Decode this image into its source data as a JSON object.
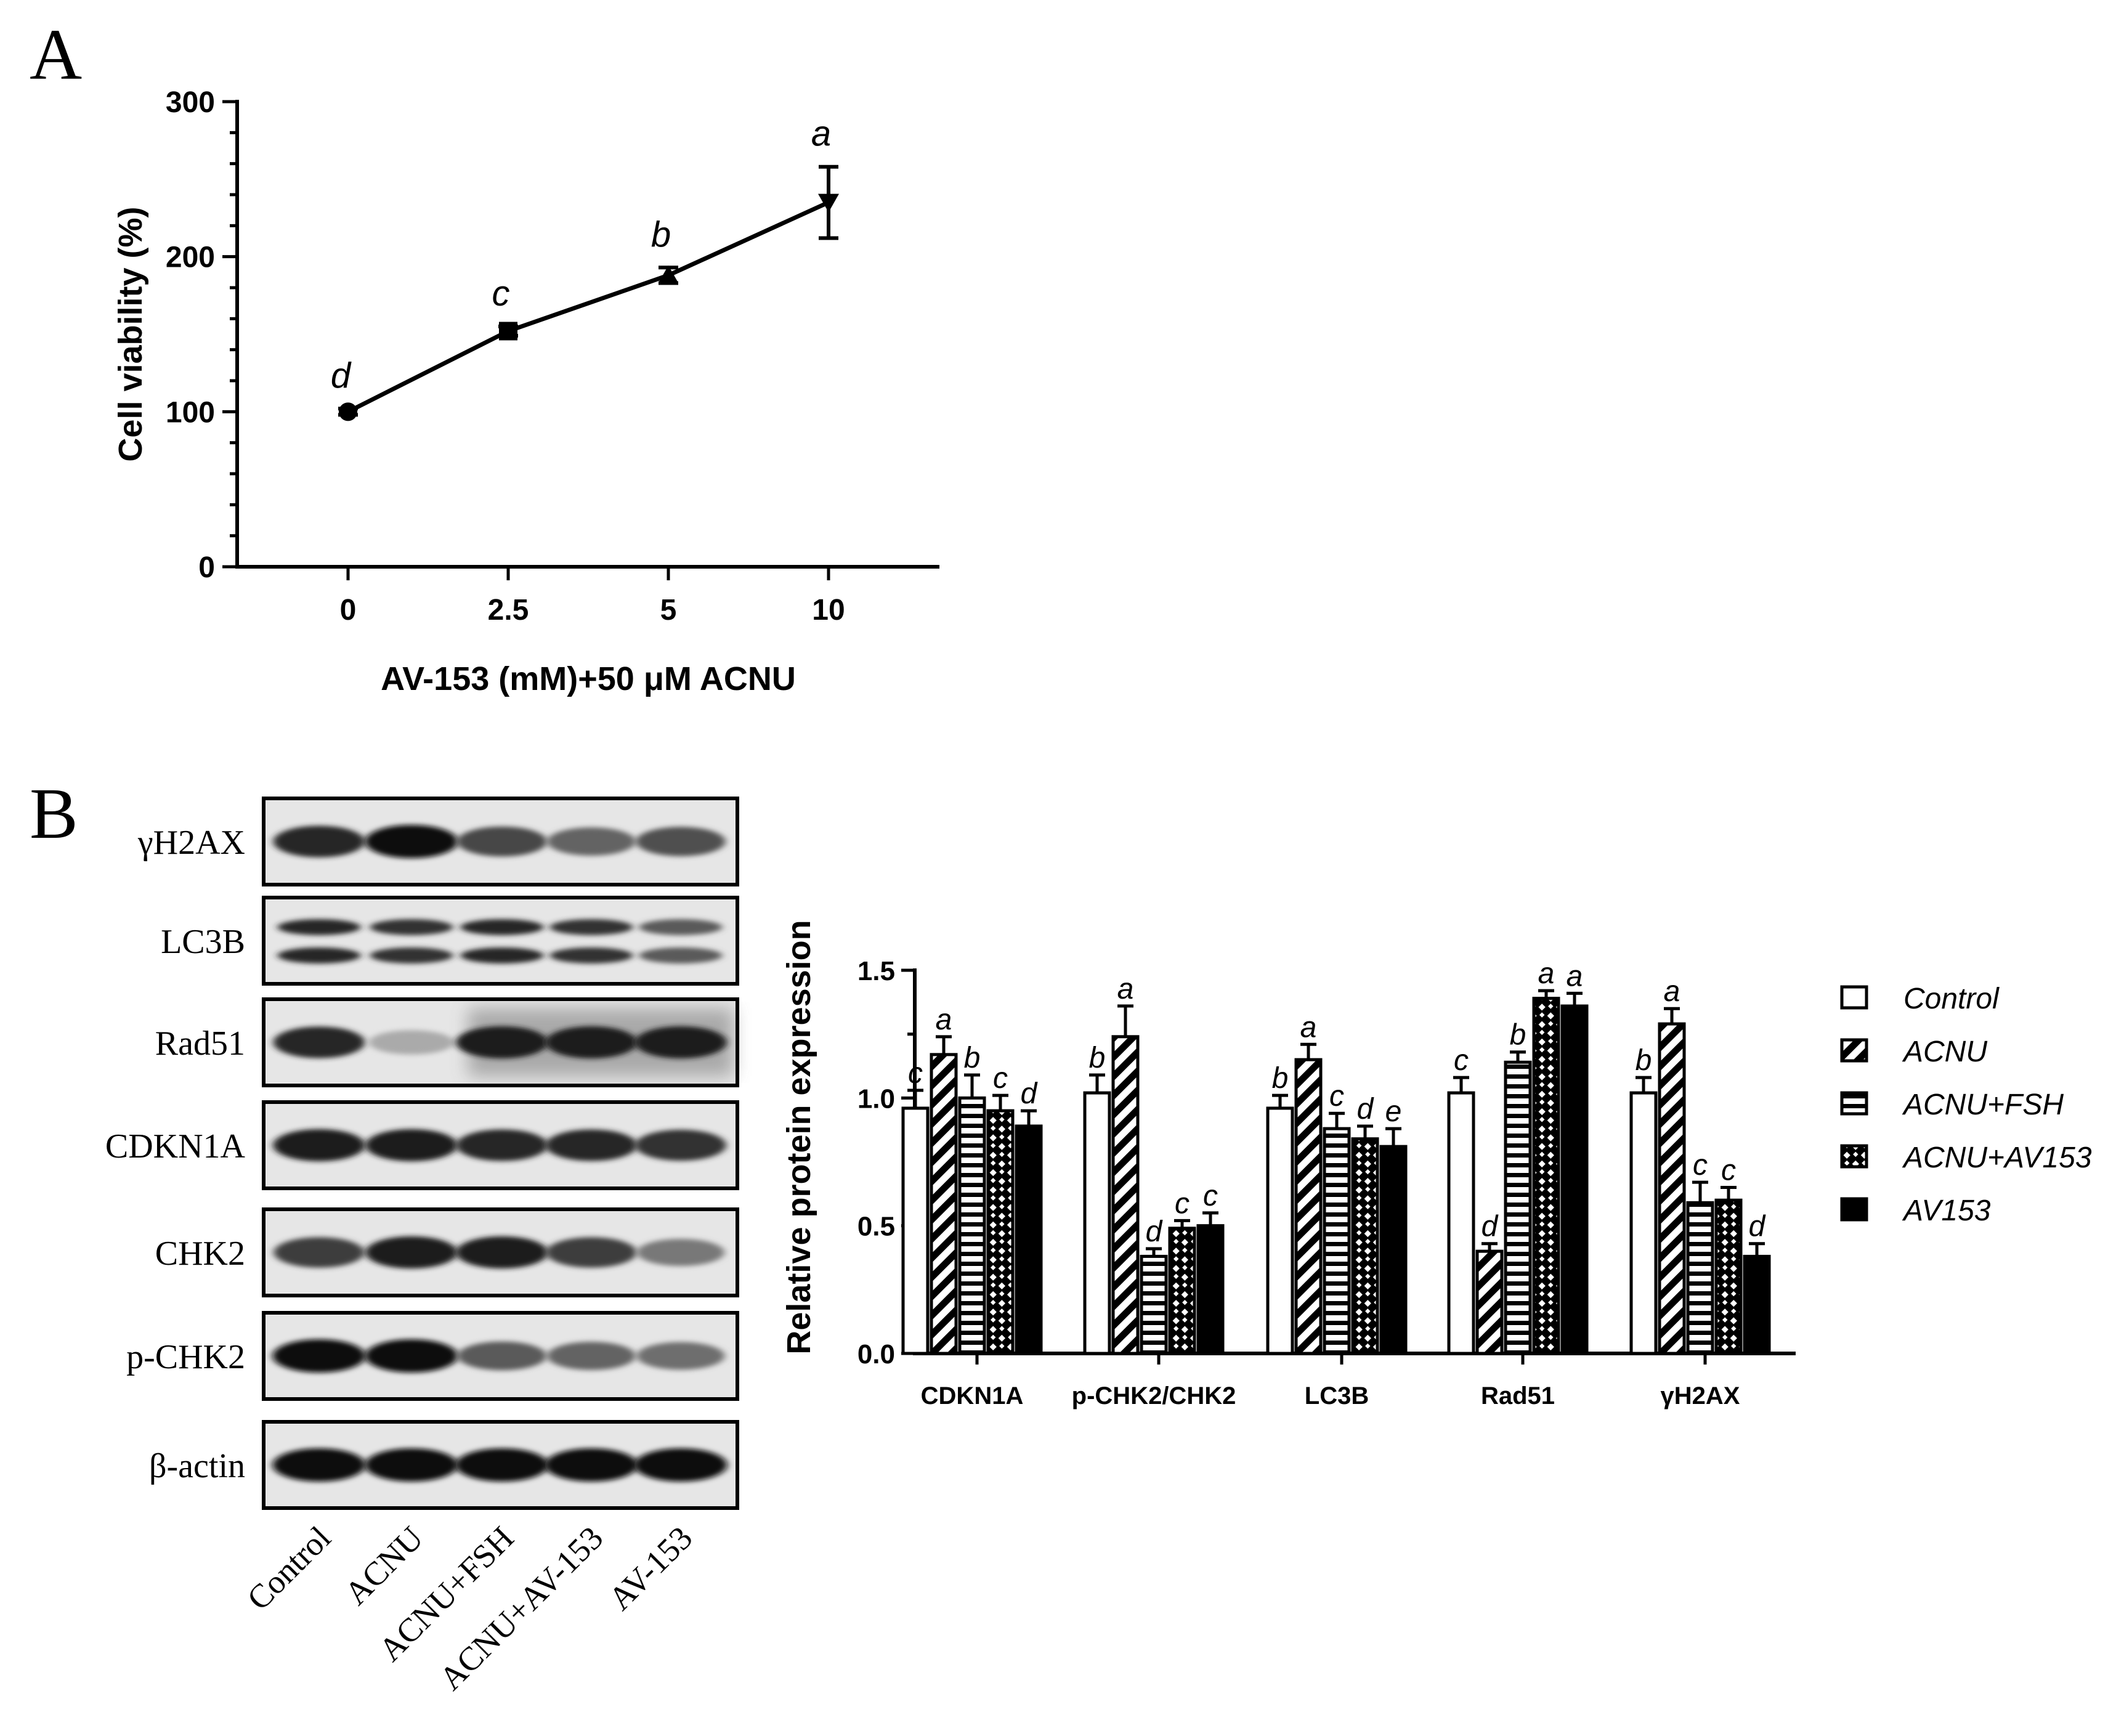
{
  "panel_labels": {
    "a": "A",
    "b": "B"
  },
  "chart_data": [
    {
      "type": "line",
      "panel": "A",
      "xlabel": "AV-153 (mM)+50 μM ACNU",
      "ylabel": "Cell viability (%)",
      "categories": [
        "0",
        "2.5",
        "5",
        "10"
      ],
      "values": [
        100,
        152,
        188,
        235
      ],
      "errors": [
        2,
        3,
        5,
        23
      ],
      "sig_letters": [
        "d",
        "c",
        "b",
        "a"
      ],
      "markers": [
        "circle",
        "square",
        "triangle-up",
        "triangle-down"
      ],
      "ylim": [
        0,
        300
      ],
      "yticks": [
        0,
        100,
        200,
        300
      ],
      "grid": false
    },
    {
      "type": "bar",
      "panel": "B",
      "ylabel": "Relative protein expression",
      "categories": [
        "CDKN1A",
        "p-CHK2/CHK2",
        "LC3B",
        "Rad51",
        "γH2AX"
      ],
      "ylim": [
        0,
        1.5
      ],
      "yticks": [
        "0.0",
        "0.5",
        "1.0",
        "1.5"
      ],
      "legend_position": "right",
      "series": [
        {
          "name": "Control",
          "pattern": "open",
          "values": [
            0.96,
            1.02,
            0.96,
            1.02,
            1.02
          ],
          "errors": [
            0.07,
            0.07,
            0.05,
            0.06,
            0.06
          ],
          "sig_letters": [
            "c",
            "b",
            "b",
            "c",
            "b"
          ]
        },
        {
          "name": "ACNU",
          "pattern": "diagonal",
          "values": [
            1.17,
            1.24,
            1.15,
            0.4,
            1.29
          ],
          "errors": [
            0.07,
            0.12,
            0.06,
            0.03,
            0.06
          ],
          "sig_letters": [
            "a",
            "a",
            "a",
            "d",
            "a"
          ]
        },
        {
          "name": "ACNU+FSH",
          "pattern": "horizontal",
          "values": [
            1.0,
            0.38,
            0.88,
            1.14,
            0.59
          ],
          "errors": [
            0.09,
            0.03,
            0.06,
            0.04,
            0.08
          ],
          "sig_letters": [
            "b",
            "d",
            "c",
            "b",
            "c"
          ]
        },
        {
          "name": "ACNU+AV153",
          "pattern": "checker",
          "values": [
            0.95,
            0.49,
            0.84,
            1.39,
            0.6
          ],
          "errors": [
            0.06,
            0.03,
            0.05,
            0.03,
            0.05
          ],
          "sig_letters": [
            "c",
            "c",
            "d",
            "a",
            "c"
          ]
        },
        {
          "name": "AV153",
          "pattern": "solid",
          "values": [
            0.89,
            0.5,
            0.81,
            1.36,
            0.38
          ],
          "errors": [
            0.06,
            0.05,
            0.07,
            0.05,
            0.05
          ],
          "sig_letters": [
            "d",
            "c",
            "e",
            "a",
            "d"
          ]
        }
      ]
    }
  ],
  "western_blot": {
    "proteins": [
      "γH2AX",
      "LC3B",
      "Rad51",
      "CDKN1A",
      "CHK2",
      "p-CHK2",
      "β-actin"
    ],
    "lanes": [
      "Control",
      "ACNU",
      "ACNU+FSH",
      "ACNU+AV-153",
      "AV-153"
    ],
    "band_intensity": [
      [
        0.85,
        1.0,
        0.7,
        0.55,
        0.65
      ],
      [
        0.85,
        0.8,
        0.85,
        0.8,
        0.6
      ],
      [
        0.85,
        0.2,
        0.9,
        0.9,
        0.9
      ],
      [
        0.9,
        0.9,
        0.85,
        0.85,
        0.8
      ],
      [
        0.75,
        0.9,
        0.9,
        0.75,
        0.45
      ],
      [
        1.0,
        1.0,
        0.6,
        0.55,
        0.5
      ],
      [
        1.0,
        1.0,
        1.0,
        1.0,
        1.0
      ]
    ]
  }
}
